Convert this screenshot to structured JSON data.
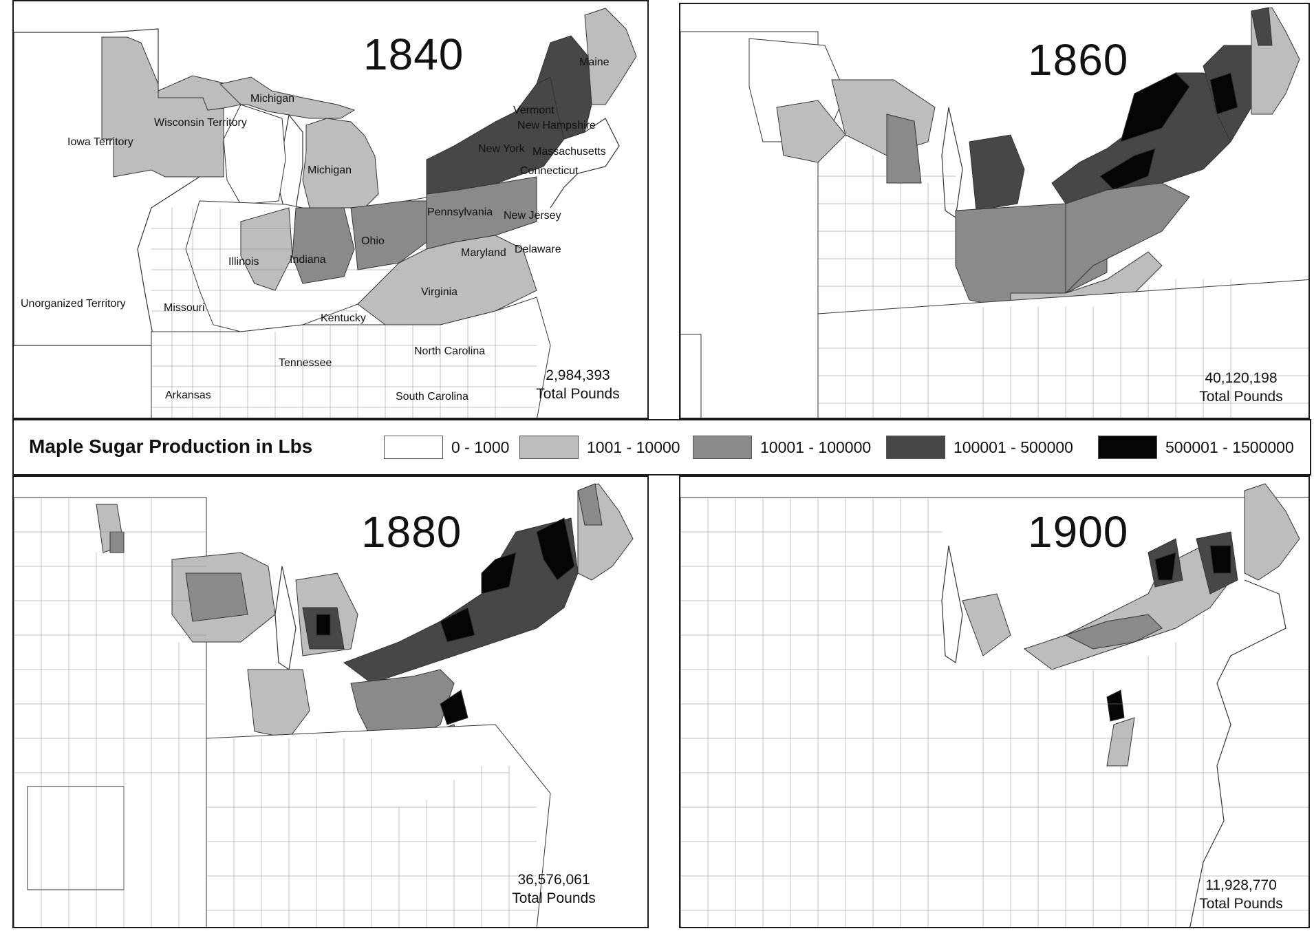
{
  "legend": {
    "title": "Maple Sugar Production in Lbs",
    "classes": [
      {
        "label": "0 - 1000",
        "color": "#ffffff"
      },
      {
        "label": "1001 - 10000",
        "color": "#bdbdbd"
      },
      {
        "label": "10001 - 100000",
        "color": "#8a8a8a"
      },
      {
        "label": "100001 - 500000",
        "color": "#474747"
      },
      {
        "label": "500001 - 1500000",
        "color": "#050505"
      }
    ]
  },
  "panels": [
    {
      "year": "1840",
      "total_value": "2,984,393",
      "total_label": "Total Pounds",
      "labels": [
        "Maine",
        "Michigan",
        "Vermont",
        "New Hampshire",
        "Iowa Territory",
        "Wisconsin Territory",
        "New York",
        "Massachusetts",
        "Michigan",
        "Connecticut",
        "Pennsylvania",
        "New Jersey",
        "Ohio",
        "Illinois",
        "Indiana",
        "Maryland",
        "Delaware",
        "Virginia",
        "Unorganized Territory",
        "Missouri",
        "Kentucky",
        "North Carolina",
        "Tennessee",
        "South Carolina",
        "Arkansas"
      ]
    },
    {
      "year": "1860",
      "total_value": "40,120,198",
      "total_label": "Total Pounds"
    },
    {
      "year": "1880",
      "total_value": "36,576,061",
      "total_label": "Total Pounds"
    },
    {
      "year": "1900",
      "total_value": "11,928,770",
      "total_label": "Total Pounds"
    }
  ]
}
